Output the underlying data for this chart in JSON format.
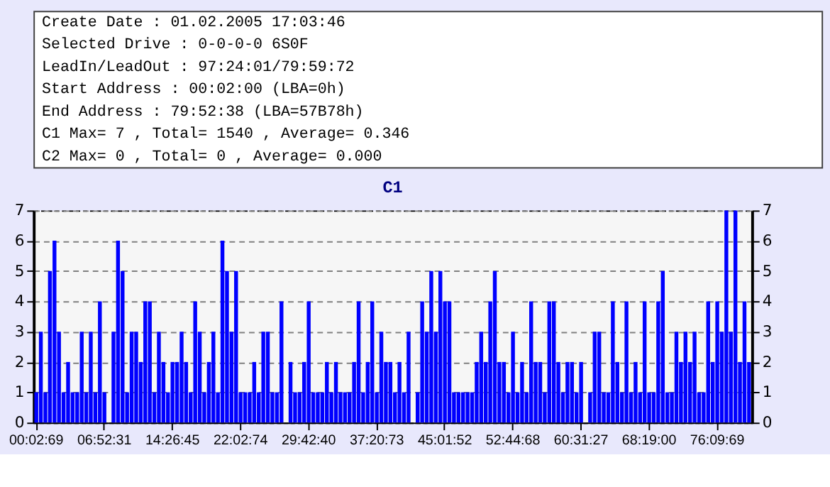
{
  "chart_data": [
    {
      "type": "other",
      "annotations": [
        "Create Date : 01.02.2005 17:03:46",
        "Selected Drive : 0-0-0-0 6S0F",
        "LeadIn/LeadOut : 97:24:01/79:59:72",
        "Start Address : 00:02:00 (LBA=0h)",
        "End Address : 79:52:38 (LBA=57B78h)",
        "C1 Max= 7 , Total= 1540 , Average= 0.346",
        "C2 Max= 0 , Total= 0 , Average= 0.000"
      ]
    },
    {
      "type": "bar",
      "title": "C1",
      "categories": [
        "00:02:69",
        null,
        null,
        null,
        null,
        null,
        null,
        null,
        null,
        null,
        null,
        null,
        null,
        null,
        null,
        "06:52:31",
        null,
        null,
        null,
        null,
        null,
        null,
        null,
        null,
        null,
        null,
        null,
        null,
        null,
        null,
        "14:26:45",
        null,
        null,
        null,
        null,
        null,
        null,
        null,
        null,
        null,
        null,
        null,
        null,
        null,
        null,
        "22:02:74",
        null,
        null,
        null,
        null,
        null,
        null,
        null,
        null,
        null,
        null,
        null,
        null,
        null,
        null,
        "29:42:40",
        null,
        null,
        null,
        null,
        null,
        null,
        null,
        null,
        null,
        null,
        null,
        null,
        null,
        null,
        "37:20:73",
        null,
        null,
        null,
        null,
        null,
        null,
        null,
        null,
        null,
        null,
        null,
        null,
        null,
        null,
        "45:01:52",
        null,
        null,
        null,
        null,
        null,
        null,
        null,
        null,
        null,
        null,
        null,
        null,
        null,
        null,
        "52:44:68",
        null,
        null,
        null,
        null,
        null,
        null,
        null,
        null,
        null,
        null,
        null,
        null,
        null,
        null,
        "60:31:27",
        null,
        null,
        null,
        null,
        null,
        null,
        null,
        null,
        null,
        null,
        null,
        null,
        null,
        null,
        "68:19:00",
        null,
        null,
        null,
        null,
        null,
        null,
        null,
        null,
        null,
        null,
        null,
        null,
        null,
        null,
        "76:09:69",
        null,
        null,
        null,
        null,
        null,
        null,
        null
      ],
      "values": [
        1,
        3,
        1,
        5,
        6,
        3,
        1,
        2,
        1,
        1,
        3,
        1,
        3,
        1,
        4,
        1,
        0,
        3,
        6,
        5,
        1,
        3,
        3,
        2,
        4,
        4,
        1,
        3,
        2,
        1,
        2,
        2,
        3,
        2,
        1,
        4,
        3,
        1,
        2,
        3,
        1,
        6,
        5,
        3,
        5,
        1,
        1,
        1,
        2,
        1,
        3,
        3,
        1,
        1,
        4,
        0,
        2,
        1,
        1,
        2,
        4,
        1,
        1,
        1,
        2,
        1,
        2,
        1,
        1,
        1,
        2,
        4,
        1,
        2,
        4,
        1,
        3,
        2,
        2,
        1,
        2,
        1,
        3,
        0,
        1,
        4,
        3,
        5,
        3,
        5,
        4,
        4,
        1,
        1,
        1,
        1,
        1,
        2,
        3,
        2,
        4,
        5,
        2,
        2,
        1,
        3,
        1,
        2,
        1,
        4,
        2,
        2,
        1,
        4,
        4,
        2,
        1,
        2,
        2,
        1,
        2,
        0,
        1,
        3,
        3,
        1,
        1,
        4,
        2,
        1,
        4,
        1,
        2,
        1,
        4,
        1,
        1,
        4,
        5,
        1,
        1,
        3,
        2,
        3,
        2,
        3,
        1,
        1,
        4,
        2,
        4,
        3,
        7,
        3,
        7,
        2,
        4,
        2
      ],
      "color": "#0000ff",
      "ylim": [
        0,
        7
      ],
      "yticks": [
        0,
        1,
        2,
        3,
        4,
        5,
        6,
        7
      ],
      "y2lim": [
        0,
        7
      ],
      "y2ticks": [
        0,
        1,
        2,
        3,
        4,
        5,
        6,
        7
      ],
      "grid": "y",
      "line_style": "dashed"
    }
  ]
}
